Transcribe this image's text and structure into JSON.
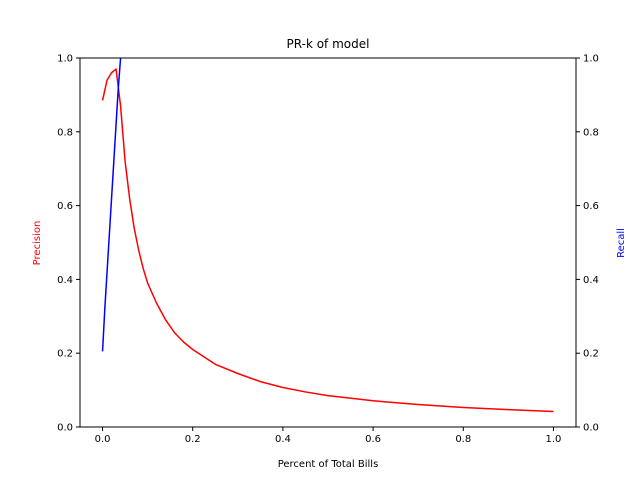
{
  "chart_data": {
    "type": "line",
    "title": "PR-k of model",
    "xlabel": "Percent of Total Bills",
    "y1label": "Precision",
    "y2label": "Recall",
    "xlim": [
      -0.05,
      1.05
    ],
    "ylim": [
      0,
      1
    ],
    "y2lim": [
      0,
      1
    ],
    "xticks": [
      0.0,
      0.2,
      0.4,
      0.6,
      0.8,
      1.0
    ],
    "xtick_labels": [
      "0.0",
      "0.2",
      "0.4",
      "0.6",
      "0.8",
      "1.0"
    ],
    "yticks": [
      0.0,
      0.2,
      0.4,
      0.6,
      0.8,
      1.0
    ],
    "ytick_labels": [
      "0.0",
      "0.2",
      "0.4",
      "0.6",
      "0.8",
      "1.0"
    ],
    "grid": false,
    "series": [
      {
        "axis": "left",
        "color": "#ff0000",
        "x": [
          0.0,
          0.01,
          0.02,
          0.03,
          0.04,
          0.05,
          0.06,
          0.07,
          0.08,
          0.09,
          0.1,
          0.12,
          0.14,
          0.16,
          0.18,
          0.2,
          0.25,
          0.3,
          0.35,
          0.4,
          0.45,
          0.5,
          0.6,
          0.7,
          0.8,
          0.9,
          1.0
        ],
        "values": [
          0.885,
          0.94,
          0.96,
          0.97,
          0.87,
          0.72,
          0.62,
          0.54,
          0.48,
          0.43,
          0.39,
          0.335,
          0.29,
          0.255,
          0.23,
          0.21,
          0.17,
          0.145,
          0.123,
          0.107,
          0.095,
          0.085,
          0.071,
          0.061,
          0.053,
          0.047,
          0.042
        ]
      },
      {
        "axis": "right",
        "color": "#0000ff",
        "x": [
          0.0,
          0.005,
          0.01,
          0.015,
          0.02,
          0.025,
          0.03,
          0.035,
          0.04
        ],
        "values": [
          0.205,
          0.32,
          0.42,
          0.52,
          0.62,
          0.72,
          0.82,
          0.92,
          1.0
        ]
      }
    ]
  }
}
